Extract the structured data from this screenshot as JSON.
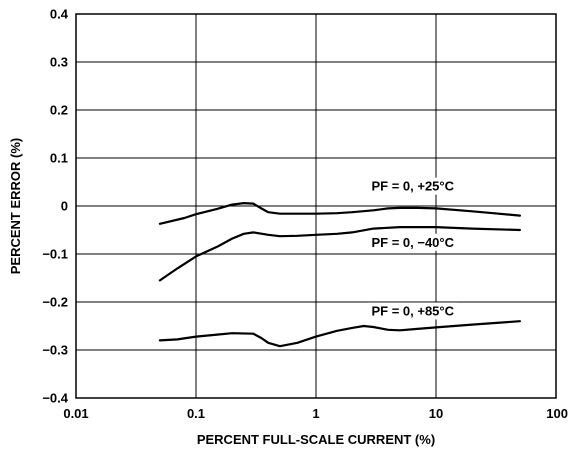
{
  "chart_data": {
    "type": "line",
    "xlabel": "PERCENT FULL-SCALE CURRENT (%)",
    "ylabel": "PERCENT ERROR (%)",
    "x_scale": "log",
    "xlim": [
      0.01,
      100
    ],
    "ylim": [
      -0.4,
      0.4
    ],
    "x_ticks": [
      0.01,
      0.1,
      1,
      10,
      100
    ],
    "x_tick_labels": [
      "0.01",
      "0.1",
      "1",
      "10",
      "100"
    ],
    "y_ticks": [
      0.4,
      0.3,
      0.2,
      0.1,
      0,
      -0.1,
      -0.2,
      -0.3,
      -0.4
    ],
    "y_tick_labels": [
      "0.4",
      "0.3",
      "0.2",
      "0.1",
      "0",
      "−0.1",
      "−0.2",
      "−0.3",
      "−0.4"
    ],
    "grid": true,
    "series": [
      {
        "name": "PF = 0, +25°C",
        "x": [
          0.05,
          0.08,
          0.1,
          0.15,
          0.2,
          0.25,
          0.3,
          0.35,
          0.4,
          0.5,
          0.7,
          1,
          1.5,
          2,
          3,
          4,
          5,
          7,
          10,
          20,
          30,
          50
        ],
        "y": [
          -0.037,
          -0.025,
          -0.017,
          -0.006,
          0.003,
          0.006,
          0.005,
          -0.005,
          -0.013,
          -0.016,
          -0.016,
          -0.016,
          -0.015,
          -0.013,
          -0.009,
          -0.005,
          -0.004,
          -0.004,
          -0.005,
          -0.011,
          -0.015,
          -0.02
        ]
      },
      {
        "name": "PF = 0, −40°C",
        "x": [
          0.05,
          0.07,
          0.1,
          0.15,
          0.2,
          0.25,
          0.3,
          0.4,
          0.5,
          0.7,
          1,
          1.5,
          2,
          3,
          5,
          10,
          20,
          50
        ],
        "y": [
          -0.155,
          -0.13,
          -0.105,
          -0.085,
          -0.068,
          -0.058,
          -0.055,
          -0.06,
          -0.063,
          -0.062,
          -0.06,
          -0.058,
          -0.055,
          -0.047,
          -0.044,
          -0.044,
          -0.047,
          -0.05
        ]
      },
      {
        "name": "PF = 0, +85°C",
        "x": [
          0.05,
          0.07,
          0.1,
          0.15,
          0.2,
          0.3,
          0.35,
          0.4,
          0.5,
          0.7,
          1,
          1.5,
          2,
          2.5,
          3,
          4,
          5,
          7,
          10,
          20,
          50
        ],
        "y": [
          -0.28,
          -0.278,
          -0.272,
          -0.268,
          -0.265,
          -0.266,
          -0.275,
          -0.285,
          -0.292,
          -0.285,
          -0.272,
          -0.26,
          -0.254,
          -0.25,
          -0.252,
          -0.258,
          -0.259,
          -0.256,
          -0.253,
          -0.247,
          -0.24
        ]
      }
    ],
    "annotations": [
      {
        "text": "PF = 0, +25°C",
        "x": 2.9,
        "y": 0.032
      },
      {
        "text": "PF = 0, −40°C",
        "x": 2.9,
        "y": -0.085
      },
      {
        "text": "PF = 0, +85°C",
        "x": 2.9,
        "y": -0.228
      }
    ]
  }
}
